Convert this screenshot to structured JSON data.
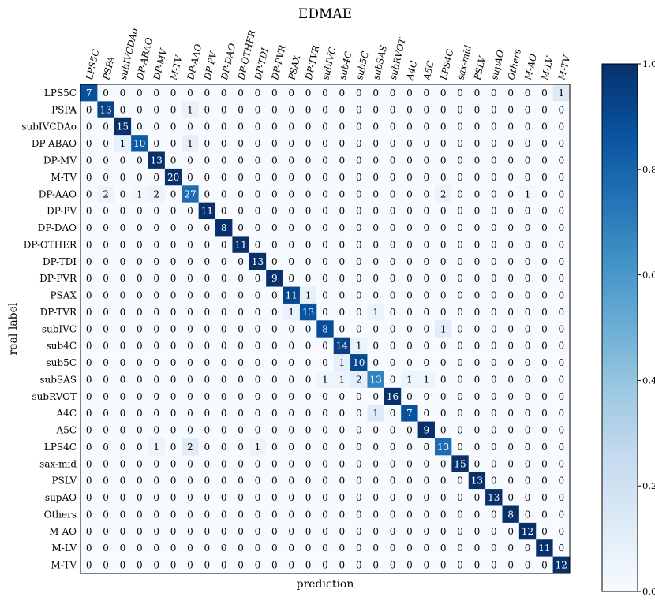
{
  "chart_data": {
    "type": "heatmap",
    "title": "EDMAE",
    "xlabel": "prediction",
    "ylabel": "real label",
    "x_categories": [
      "LPS5C",
      "PSPA",
      "subIVCDAo",
      "DP-ABAO",
      "DP-MV",
      "M-TV",
      "DP-AAO",
      "DP-PV",
      "DP-DAO",
      "DP-OTHER",
      "DP-TDI",
      "DP-PVR",
      "PSAX",
      "DP-TVR",
      "subIVC",
      "sub4C",
      "sub5C",
      "subSAS",
      "subRVOT",
      "A4C",
      "A5C",
      "LPS4C",
      "sax-mid",
      "PSLV",
      "supAO",
      "Others",
      "M-AO",
      "M-LV",
      "M-TV"
    ],
    "y_categories": [
      "LPS5C",
      "PSPA",
      "subIVCDAo",
      "DP-ABAO",
      "DP-MV",
      "M-TV",
      "DP-AAO",
      "DP-PV",
      "DP-DAO",
      "DP-OTHER",
      "DP-TDI",
      "DP-PVR",
      "PSAX",
      "DP-TVR",
      "subIVC",
      "sub4C",
      "sub5C",
      "subSAS",
      "subRVOT",
      "A4C",
      "A5C",
      "LPS4C",
      "sax-mid",
      "PSLV",
      "supAO",
      "Others",
      "M-AO",
      "M-LV",
      "M-TV"
    ],
    "values": [
      [
        7,
        0,
        0,
        0,
        0,
        0,
        0,
        0,
        0,
        0,
        0,
        0,
        0,
        0,
        0,
        0,
        0,
        0,
        0,
        0,
        0,
        0,
        0,
        0,
        0,
        0,
        0,
        0,
        1
      ],
      [
        0,
        13,
        0,
        0,
        0,
        0,
        1,
        0,
        0,
        0,
        0,
        0,
        0,
        0,
        0,
        0,
        0,
        0,
        0,
        0,
        0,
        0,
        0,
        0,
        0,
        0,
        0,
        0,
        0
      ],
      [
        0,
        0,
        15,
        0,
        0,
        0,
        0,
        0,
        0,
        0,
        0,
        0,
        0,
        0,
        0,
        0,
        0,
        0,
        0,
        0,
        0,
        0,
        0,
        0,
        0,
        0,
        0,
        0,
        0
      ],
      [
        0,
        0,
        1,
        10,
        0,
        0,
        1,
        0,
        0,
        0,
        0,
        0,
        0,
        0,
        0,
        0,
        0,
        0,
        0,
        0,
        0,
        0,
        0,
        0,
        0,
        0,
        0,
        0,
        0
      ],
      [
        0,
        0,
        0,
        0,
        13,
        0,
        0,
        0,
        0,
        0,
        0,
        0,
        0,
        0,
        0,
        0,
        0,
        0,
        0,
        0,
        0,
        0,
        0,
        0,
        0,
        0,
        0,
        0,
        0
      ],
      [
        0,
        0,
        0,
        0,
        0,
        20,
        0,
        0,
        0,
        0,
        0,
        0,
        0,
        0,
        0,
        0,
        0,
        0,
        0,
        0,
        0,
        0,
        0,
        0,
        0,
        0,
        0,
        0,
        0
      ],
      [
        0,
        2,
        0,
        1,
        2,
        0,
        27,
        0,
        0,
        0,
        0,
        0,
        0,
        0,
        0,
        0,
        0,
        0,
        0,
        0,
        0,
        2,
        0,
        0,
        0,
        0,
        1,
        0,
        0
      ],
      [
        0,
        0,
        0,
        0,
        0,
        0,
        0,
        11,
        0,
        0,
        0,
        0,
        0,
        0,
        0,
        0,
        0,
        0,
        0,
        0,
        0,
        0,
        0,
        0,
        0,
        0,
        0,
        0,
        0
      ],
      [
        0,
        0,
        0,
        0,
        0,
        0,
        0,
        0,
        8,
        0,
        0,
        0,
        0,
        0,
        0,
        0,
        0,
        0,
        0,
        0,
        0,
        0,
        0,
        0,
        0,
        0,
        0,
        0,
        0
      ],
      [
        0,
        0,
        0,
        0,
        0,
        0,
        0,
        0,
        0,
        11,
        0,
        0,
        0,
        0,
        0,
        0,
        0,
        0,
        0,
        0,
        0,
        0,
        0,
        0,
        0,
        0,
        0,
        0,
        0
      ],
      [
        0,
        0,
        0,
        0,
        0,
        0,
        0,
        0,
        0,
        0,
        13,
        0,
        0,
        0,
        0,
        0,
        0,
        0,
        0,
        0,
        0,
        0,
        0,
        0,
        0,
        0,
        0,
        0,
        0
      ],
      [
        0,
        0,
        0,
        0,
        0,
        0,
        0,
        0,
        0,
        0,
        0,
        9,
        0,
        0,
        0,
        0,
        0,
        0,
        0,
        0,
        0,
        0,
        0,
        0,
        0,
        0,
        0,
        0,
        0
      ],
      [
        0,
        0,
        0,
        0,
        0,
        0,
        0,
        0,
        0,
        0,
        0,
        0,
        11,
        1,
        0,
        0,
        0,
        0,
        0,
        0,
        0,
        0,
        0,
        0,
        0,
        0,
        0,
        0,
        0
      ],
      [
        0,
        0,
        0,
        0,
        0,
        0,
        0,
        0,
        0,
        0,
        0,
        0,
        1,
        13,
        0,
        0,
        0,
        1,
        0,
        0,
        0,
        0,
        0,
        0,
        0,
        0,
        0,
        0,
        0
      ],
      [
        0,
        0,
        0,
        0,
        0,
        0,
        0,
        0,
        0,
        0,
        0,
        0,
        0,
        0,
        8,
        0,
        0,
        0,
        0,
        0,
        0,
        1,
        0,
        0,
        0,
        0,
        0,
        0,
        0
      ],
      [
        0,
        0,
        0,
        0,
        0,
        0,
        0,
        0,
        0,
        0,
        0,
        0,
        0,
        0,
        0,
        14,
        1,
        0,
        0,
        0,
        0,
        0,
        0,
        0,
        0,
        0,
        0,
        0,
        0
      ],
      [
        0,
        0,
        0,
        0,
        0,
        0,
        0,
        0,
        0,
        0,
        0,
        0,
        0,
        0,
        0,
        1,
        10,
        0,
        0,
        0,
        0,
        0,
        0,
        0,
        0,
        0,
        0,
        0,
        0
      ],
      [
        0,
        0,
        0,
        0,
        0,
        0,
        0,
        0,
        0,
        0,
        0,
        0,
        0,
        0,
        1,
        1,
        2,
        13,
        0,
        1,
        1,
        0,
        0,
        0,
        0,
        0,
        0,
        0,
        0
      ],
      [
        0,
        0,
        0,
        0,
        0,
        0,
        0,
        0,
        0,
        0,
        0,
        0,
        0,
        0,
        0,
        0,
        0,
        0,
        16,
        0,
        0,
        0,
        0,
        0,
        0,
        0,
        0,
        0,
        0
      ],
      [
        0,
        0,
        0,
        0,
        0,
        0,
        0,
        0,
        0,
        0,
        0,
        0,
        0,
        0,
        0,
        0,
        0,
        1,
        0,
        7,
        0,
        0,
        0,
        0,
        0,
        0,
        0,
        0,
        0
      ],
      [
        0,
        0,
        0,
        0,
        0,
        0,
        0,
        0,
        0,
        0,
        0,
        0,
        0,
        0,
        0,
        0,
        0,
        0,
        0,
        0,
        9,
        0,
        0,
        0,
        0,
        0,
        0,
        0,
        0
      ],
      [
        0,
        0,
        0,
        0,
        1,
        0,
        2,
        0,
        0,
        0,
        1,
        0,
        0,
        0,
        0,
        0,
        0,
        0,
        0,
        0,
        0,
        13,
        0,
        0,
        0,
        0,
        0,
        0,
        0
      ],
      [
        0,
        0,
        0,
        0,
        0,
        0,
        0,
        0,
        0,
        0,
        0,
        0,
        0,
        0,
        0,
        0,
        0,
        0,
        0,
        0,
        0,
        0,
        15,
        0,
        0,
        0,
        0,
        0,
        0
      ],
      [
        0,
        0,
        0,
        0,
        0,
        0,
        0,
        0,
        0,
        0,
        0,
        0,
        0,
        0,
        0,
        0,
        0,
        0,
        0,
        0,
        0,
        0,
        0,
        13,
        0,
        0,
        0,
        0,
        0
      ],
      [
        0,
        0,
        0,
        0,
        0,
        0,
        0,
        0,
        0,
        0,
        0,
        0,
        0,
        0,
        0,
        0,
        0,
        0,
        0,
        0,
        0,
        0,
        0,
        0,
        13,
        0,
        0,
        0,
        0
      ],
      [
        0,
        0,
        0,
        0,
        0,
        0,
        0,
        0,
        0,
        0,
        0,
        0,
        0,
        0,
        0,
        0,
        0,
        0,
        0,
        0,
        0,
        0,
        0,
        0,
        0,
        8,
        0,
        0,
        0
      ],
      [
        0,
        0,
        0,
        0,
        0,
        0,
        0,
        0,
        0,
        0,
        0,
        0,
        0,
        0,
        0,
        0,
        0,
        0,
        0,
        0,
        0,
        0,
        0,
        0,
        0,
        0,
        12,
        0,
        0
      ],
      [
        0,
        0,
        0,
        0,
        0,
        0,
        0,
        0,
        0,
        0,
        0,
        0,
        0,
        0,
        0,
        0,
        0,
        0,
        0,
        0,
        0,
        0,
        0,
        0,
        0,
        0,
        0,
        11,
        0
      ],
      [
        0,
        0,
        0,
        0,
        0,
        0,
        0,
        0,
        0,
        0,
        0,
        0,
        0,
        0,
        0,
        0,
        0,
        0,
        0,
        0,
        0,
        0,
        0,
        0,
        0,
        0,
        0,
        0,
        12
      ]
    ],
    "colorbar": {
      "range": [
        0.0,
        1.0
      ],
      "ticks": [
        "0.0",
        "0.2",
        "0.4",
        "0.6",
        "0.8",
        "1.0"
      ],
      "colormap": "Blues"
    },
    "normalization": "row",
    "legend_placement": "right",
    "grid": false
  }
}
